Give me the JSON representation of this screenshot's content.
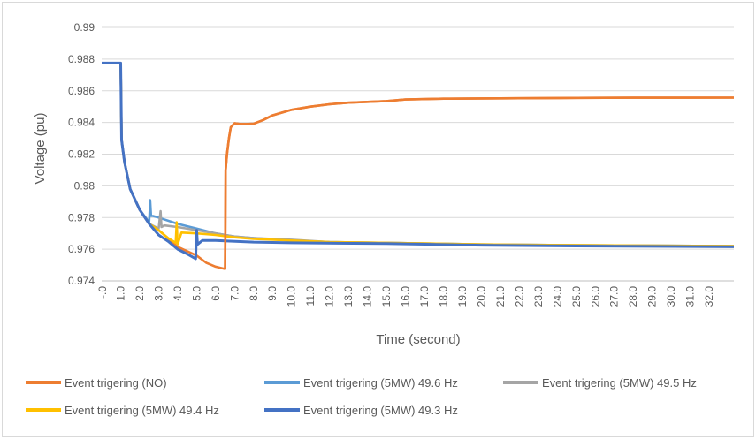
{
  "chart_data": {
    "type": "line",
    "title": "",
    "xlabel": "Time (second)",
    "ylabel": "Voltage (pu)",
    "ylim": [
      0.974,
      0.99
    ],
    "xlim": [
      0,
      33.3
    ],
    "yticks": [
      "0.974",
      "0.976",
      "0.978",
      "0.98",
      "0.982",
      "0.984",
      "0.986",
      "0.988",
      "0.99"
    ],
    "xtick_labels": [
      "-.0",
      "1.0",
      "2.0",
      "3.0",
      "4.0",
      "5.0",
      "6.0",
      "7.0",
      "8.0",
      "9.0",
      "10.0",
      "11.0",
      "12.0",
      "13.0",
      "14.0",
      "15.0",
      "16.0",
      "17.0",
      "18.0",
      "19.0",
      "20.0",
      "21.0",
      "22.0",
      "23.0",
      "24.0",
      "25.0",
      "26.0",
      "27.0",
      "28.0",
      "29.0",
      "30.0",
      "31.0",
      "32.0"
    ],
    "grid": true,
    "legend_position": "bottom",
    "series": [
      {
        "name": "Event trigering (NO)",
        "color": "#ED7D31",
        "x": [
          0,
          1,
          1.05,
          1.2,
          1.5,
          2,
          2.5,
          2.9,
          3.2,
          4,
          5,
          5.5,
          6,
          6.5,
          6.53,
          6.6,
          6.7,
          6.8,
          7.0,
          7.3,
          7.6,
          8.0,
          8.5,
          9,
          10,
          11,
          12,
          13,
          14,
          15,
          16,
          18,
          20,
          22,
          25,
          28,
          33.3
        ],
        "y": [
          0.98775,
          0.98775,
          0.9829,
          0.9815,
          0.9798,
          0.9785,
          0.9776,
          0.9773,
          0.977,
          0.97615,
          0.9756,
          0.97515,
          0.9749,
          0.97475,
          0.981,
          0.982,
          0.983,
          0.9837,
          0.98395,
          0.9839,
          0.9839,
          0.98392,
          0.98415,
          0.98445,
          0.9848,
          0.985,
          0.98515,
          0.98525,
          0.9853,
          0.98535,
          0.98545,
          0.9855,
          0.98552,
          0.98553,
          0.98555,
          0.98556,
          0.98557
        ]
      },
      {
        "name": "Event trigering (5MW) 49.6 Hz",
        "color": "#5B9BD5",
        "x": [
          0,
          1,
          1.05,
          1.2,
          1.5,
          2,
          2.5,
          2.55,
          2.6,
          2.7,
          3.0,
          4,
          5,
          6,
          7,
          8,
          10,
          12,
          15,
          20,
          25,
          33.3
        ],
        "y": [
          0.98775,
          0.98775,
          0.9829,
          0.9815,
          0.9798,
          0.9785,
          0.9777,
          0.9791,
          0.9781,
          0.9781,
          0.978,
          0.9776,
          0.9773,
          0.977,
          0.9768,
          0.9767,
          0.97655,
          0.97645,
          0.9764,
          0.9763,
          0.97625,
          0.9762
        ]
      },
      {
        "name": "Event trigering (5MW) 49.5 Hz",
        "color": "#A5A5A5",
        "x": [
          0,
          1,
          1.05,
          1.2,
          1.5,
          2,
          2.5,
          3.0,
          3.1,
          3.15,
          3.3,
          4,
          5,
          6,
          7,
          8,
          10,
          12,
          15,
          20,
          25,
          33.3
        ],
        "y": [
          0.98775,
          0.98775,
          0.9829,
          0.9815,
          0.9798,
          0.9785,
          0.9776,
          0.9773,
          0.9784,
          0.9774,
          0.9775,
          0.9774,
          0.9772,
          0.977,
          0.9768,
          0.9767,
          0.9766,
          0.97645,
          0.9764,
          0.9763,
          0.97625,
          0.9762
        ]
      },
      {
        "name": "Event trigering (5MW) 49.4 Hz",
        "color": "#FFC000",
        "x": [
          0,
          1,
          1.05,
          1.2,
          1.5,
          2,
          2.5,
          3.0,
          3.5,
          3.9,
          3.95,
          4.0,
          4.2,
          5,
          6,
          7,
          8,
          10,
          12,
          15,
          20,
          25,
          33.3
        ],
        "y": [
          0.98775,
          0.98775,
          0.9829,
          0.9815,
          0.9798,
          0.9785,
          0.9776,
          0.9772,
          0.9767,
          0.9764,
          0.9777,
          0.9763,
          0.97705,
          0.977,
          0.9769,
          0.97675,
          0.97665,
          0.97655,
          0.97645,
          0.9764,
          0.9763,
          0.97625,
          0.9762
        ]
      },
      {
        "name": "Event trigering (5MW) 49.3 Hz",
        "color": "#4472C4",
        "x": [
          0,
          1,
          1.05,
          1.2,
          1.5,
          2,
          2.5,
          3.0,
          3.5,
          4,
          4.5,
          4.95,
          5.0,
          5.05,
          5.3,
          6,
          8,
          10,
          15,
          20,
          25,
          33.3
        ],
        "y": [
          0.98775,
          0.98775,
          0.9829,
          0.9815,
          0.9798,
          0.9785,
          0.9776,
          0.9769,
          0.9765,
          0.976,
          0.9757,
          0.9754,
          0.9772,
          0.9763,
          0.97655,
          0.97655,
          0.97645,
          0.9764,
          0.97635,
          0.97625,
          0.9762,
          0.97615
        ]
      }
    ]
  }
}
